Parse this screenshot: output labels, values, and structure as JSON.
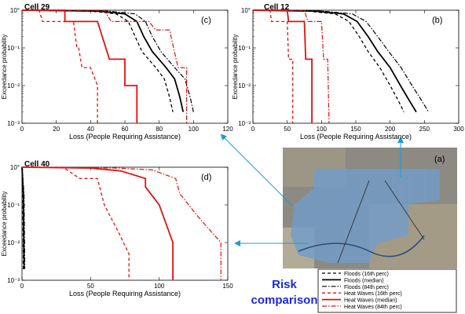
{
  "chart_data": [
    {
      "id": "c",
      "type": "line",
      "panel_label": "(c)",
      "title": "Cell 29",
      "xlabel": "Loss (People Requiring Assistance)",
      "ylabel": "Exceedance probability",
      "xlim": [
        0,
        120
      ],
      "ylim": [
        0.001,
        1
      ],
      "yscale": "log",
      "xticks": [
        "0",
        "20",
        "40",
        "60",
        "80",
        "100",
        "120"
      ],
      "yticks": [
        "10°",
        "10⁻¹",
        "10⁻²",
        "10⁻³"
      ],
      "series": [
        {
          "name": "Floods (16th perc)",
          "style": "flood16",
          "points": [
            [
              0,
              1
            ],
            [
              40,
              0.95
            ],
            [
              55,
              0.8
            ],
            [
              62,
              0.5
            ],
            [
              66,
              0.2
            ],
            [
              70,
              0.08
            ],
            [
              78,
              0.03
            ],
            [
              83,
              0.015
            ],
            [
              86,
              0.005
            ],
            [
              88,
              0.002
            ]
          ]
        },
        {
          "name": "Floods (median)",
          "style": "floodMed",
          "points": [
            [
              0,
              1
            ],
            [
              45,
              0.95
            ],
            [
              60,
              0.8
            ],
            [
              67,
              0.5
            ],
            [
              71,
              0.2
            ],
            [
              76,
              0.08
            ],
            [
              84,
              0.03
            ],
            [
              89,
              0.015
            ],
            [
              92,
              0.005
            ],
            [
              94,
              0.002
            ]
          ]
        },
        {
          "name": "Floods (84th perc)",
          "style": "flood84",
          "points": [
            [
              0,
              1
            ],
            [
              50,
              0.95
            ],
            [
              66,
              0.8
            ],
            [
              72,
              0.5
            ],
            [
              76,
              0.2
            ],
            [
              81,
              0.08
            ],
            [
              89,
              0.03
            ],
            [
              95,
              0.015
            ],
            [
              98,
              0.005
            ],
            [
              100,
              0.002
            ]
          ]
        },
        {
          "name": "Heat Waves (16th perc)",
          "style": "heat16",
          "points": [
            [
              0,
              1
            ],
            [
              10,
              1
            ],
            [
              12,
              0.5
            ],
            [
              30,
              0.5
            ],
            [
              32,
              0.1
            ],
            [
              33,
              0.1
            ],
            [
              35,
              0.03
            ],
            [
              40,
              0.03
            ],
            [
              44,
              0.01
            ],
            [
              44,
              0.001
            ]
          ]
        },
        {
          "name": "Heat Waves (median)",
          "style": "heatMed",
          "points": [
            [
              0,
              1
            ],
            [
              25,
              1
            ],
            [
              25,
              0.5
            ],
            [
              44,
              0.5
            ],
            [
              51,
              0.05
            ],
            [
              60,
              0.05
            ],
            [
              60,
              0.01
            ],
            [
              67,
              0.01
            ],
            [
              67,
              0.001
            ]
          ]
        },
        {
          "name": "Heat Waves (84th perc)",
          "style": "heat84",
          "points": [
            [
              0,
              1
            ],
            [
              48,
              1
            ],
            [
              52,
              0.5
            ],
            [
              74,
              0.5
            ],
            [
              78,
              0.3
            ],
            [
              86,
              0.3
            ],
            [
              91,
              0.03
            ],
            [
              96,
              0.03
            ],
            [
              96,
              0.001
            ]
          ]
        }
      ]
    },
    {
      "id": "b",
      "type": "line",
      "panel_label": "(b)",
      "title": "Cell 12",
      "xlabel": "Loss (People Requiring Assistance)",
      "ylabel": "Exceedance probability",
      "xlim": [
        0,
        300
      ],
      "ylim": [
        0.001,
        1
      ],
      "yscale": "log",
      "xticks": [
        "0",
        "50",
        "100",
        "150",
        "200",
        "250",
        "300"
      ],
      "yticks": [
        "10°",
        "10⁻¹",
        "10⁻²",
        "10⁻³"
      ],
      "series": [
        {
          "name": "Floods (16th perc)",
          "style": "flood16",
          "points": [
            [
              0,
              1
            ],
            [
              80,
              0.95
            ],
            [
              120,
              0.8
            ],
            [
              140,
              0.5
            ],
            [
              155,
              0.2
            ],
            [
              168,
              0.08
            ],
            [
              185,
              0.03
            ],
            [
              200,
              0.01
            ],
            [
              212,
              0.004
            ],
            [
              220,
              0.002
            ]
          ]
        },
        {
          "name": "Floods (median)",
          "style": "floodMed",
          "points": [
            [
              0,
              1
            ],
            [
              90,
              0.95
            ],
            [
              132,
              0.8
            ],
            [
              152,
              0.5
            ],
            [
              168,
              0.2
            ],
            [
              182,
              0.08
            ],
            [
              200,
              0.03
            ],
            [
              215,
              0.01
            ],
            [
              228,
              0.004
            ],
            [
              238,
              0.002
            ]
          ]
        },
        {
          "name": "Floods (84th perc)",
          "style": "flood84",
          "points": [
            [
              0,
              1
            ],
            [
              100,
              0.95
            ],
            [
              145,
              0.8
            ],
            [
              165,
              0.5
            ],
            [
              182,
              0.2
            ],
            [
              198,
              0.08
            ],
            [
              216,
              0.03
            ],
            [
              232,
              0.01
            ],
            [
              246,
              0.004
            ],
            [
              256,
              0.002
            ]
          ]
        },
        {
          "name": "Heat Waves (16th perc)",
          "style": "heat16",
          "points": [
            [
              0,
              1
            ],
            [
              25,
              1
            ],
            [
              27,
              0.5
            ],
            [
              50,
              0.5
            ],
            [
              52,
              0.05
            ],
            [
              58,
              0.05
            ],
            [
              58,
              0.001
            ]
          ]
        },
        {
          "name": "Heat Waves (median)",
          "style": "heatMed",
          "points": [
            [
              0,
              1
            ],
            [
              50,
              1
            ],
            [
              52,
              0.5
            ],
            [
              75,
              0.5
            ],
            [
              77,
              0.05
            ],
            [
              86,
              0.05
            ],
            [
              86,
              0.001
            ]
          ]
        },
        {
          "name": "Heat Waves (84th perc)",
          "style": "heat84",
          "points": [
            [
              0,
              1
            ],
            [
              75,
              1
            ],
            [
              80,
              0.5
            ],
            [
              100,
              0.5
            ],
            [
              103,
              0.05
            ],
            [
              109,
              0.05
            ],
            [
              111,
              0.001
            ]
          ]
        }
      ]
    },
    {
      "id": "d",
      "type": "line",
      "panel_label": "(d)",
      "title": "Cell 40",
      "xlabel": "Loss (People Requiring Assistance)",
      "ylabel": "Exceedance probability",
      "xlim": [
        0,
        150
      ],
      "ylim": [
        0.001,
        1
      ],
      "yscale": "log",
      "xticks": [
        "0",
        "50",
        "100",
        "150"
      ],
      "yticks": [
        "10°",
        "10⁻¹",
        "10⁻²",
        "10⁻³"
      ],
      "series": [
        {
          "name": "Floods (16th perc)",
          "style": "flood16",
          "points": [
            [
              0,
              1
            ],
            [
              0.5,
              0.2
            ],
            [
              1,
              0.003
            ],
            [
              1,
              0.002
            ]
          ]
        },
        {
          "name": "Floods (median)",
          "style": "floodMed",
          "points": [
            [
              0,
              1
            ],
            [
              1,
              0.2
            ],
            [
              1.5,
              0.003
            ],
            [
              1.5,
              0.002
            ]
          ]
        },
        {
          "name": "Floods (84th perc)",
          "style": "flood84",
          "points": [
            [
              0,
              1
            ],
            [
              1.5,
              0.2
            ],
            [
              2,
              0.003
            ],
            [
              2,
              0.002
            ]
          ]
        },
        {
          "name": "Heat Waves (16th perc)",
          "style": "heat16",
          "points": [
            [
              0,
              1
            ],
            [
              30,
              1
            ],
            [
              42,
              0.5
            ],
            [
              55,
              0.5
            ],
            [
              60,
              0.1
            ],
            [
              70,
              0.02
            ],
            [
              78,
              0.005
            ],
            [
              78,
              0.001
            ]
          ]
        },
        {
          "name": "Heat Waves (median)",
          "style": "heatMed",
          "points": [
            [
              0,
              1
            ],
            [
              50,
              0.95
            ],
            [
              72,
              0.8
            ],
            [
              90,
              0.5
            ],
            [
              90,
              0.3
            ],
            [
              100,
              0.1
            ],
            [
              110,
              0.01
            ],
            [
              110,
              0.001
            ]
          ]
        },
        {
          "name": "Heat Waves (84th perc)",
          "style": "heat84",
          "points": [
            [
              0,
              1
            ],
            [
              70,
              0.95
            ],
            [
              95,
              0.85
            ],
            [
              112,
              0.5
            ],
            [
              115,
              0.2
            ],
            [
              128,
              0.05
            ],
            [
              145,
              0.01
            ],
            [
              145,
              0.001
            ]
          ]
        }
      ]
    }
  ],
  "map": {
    "label": "(a)"
  },
  "legend": {
    "items": [
      {
        "style": "flood16",
        "label": "Floods (16th perc)"
      },
      {
        "style": "floodMed",
        "label": "Floods (median)"
      },
      {
        "style": "flood84",
        "label": "Floods (84th perc)"
      },
      {
        "style": "heat16",
        "label": "Heat Waves (16th perc)"
      },
      {
        "style": "heatMed",
        "label": "Heat Waves (median)"
      },
      {
        "style": "heat84",
        "label": "Heat Waves (84th perc)"
      }
    ]
  },
  "annotation": {
    "line1": "Risk",
    "line2": "comparison"
  },
  "colors": {
    "flood": "#000000",
    "heat": "#e01010",
    "arrow": "#1f9ad6",
    "risk": "#1a2ae0"
  }
}
